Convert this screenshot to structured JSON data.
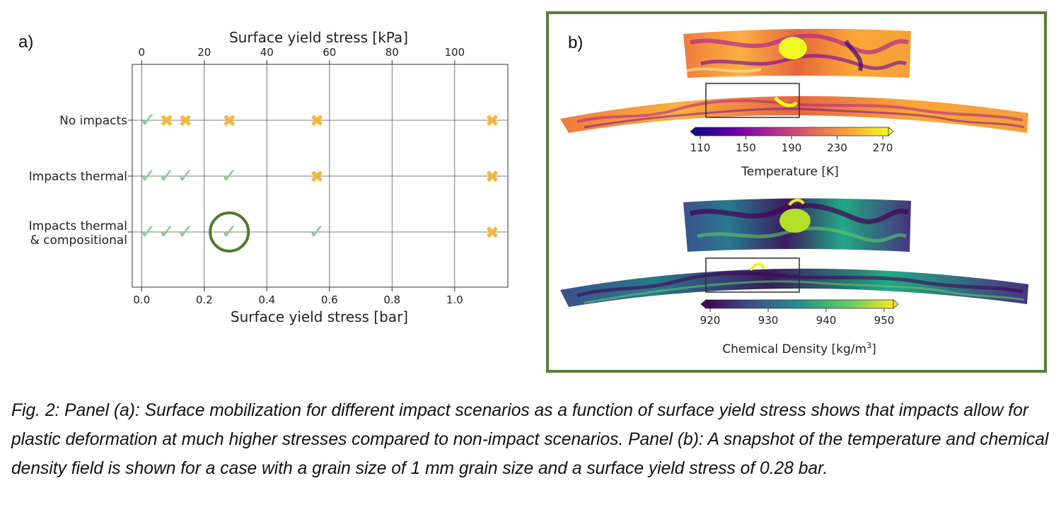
{
  "panel_a": {
    "label": "a)",
    "chart_data": {
      "type": "scatter",
      "xlabel": "Surface yield stress [bar]",
      "xlim": [
        -0.03,
        1.17
      ],
      "xticks": [
        "0.0",
        "0.2",
        "0.4",
        "0.6",
        "0.8",
        "1.0"
      ],
      "secondary_xlabel": "Surface yield stress [kPa]",
      "secondary_xticks": [
        "0",
        "20",
        "40",
        "60",
        "80",
        "100"
      ],
      "categories": [
        "No impacts",
        "Impacts thermal",
        "Impacts thermal\n& compositional"
      ],
      "category_labels": [
        [
          "No impacts"
        ],
        [
          "Impacts thermal"
        ],
        [
          "Impacts thermal",
          "& compositional"
        ]
      ],
      "grid": true,
      "markers": {
        "mobilized": {
          "glyph": "✓",
          "color": "#7ecb8f"
        },
        "not_mobilized": {
          "glyph": "✖",
          "color": "#f6b838"
        }
      },
      "points": [
        {
          "x": 0.02,
          "row": 0,
          "mobilized": true
        },
        {
          "x": 0.08,
          "row": 0,
          "mobilized": false
        },
        {
          "x": 0.14,
          "row": 0,
          "mobilized": false
        },
        {
          "x": 0.28,
          "row": 0,
          "mobilized": false
        },
        {
          "x": 0.56,
          "row": 0,
          "mobilized": false
        },
        {
          "x": 1.12,
          "row": 0,
          "mobilized": false
        },
        {
          "x": 0.02,
          "row": 1,
          "mobilized": true
        },
        {
          "x": 0.08,
          "row": 1,
          "mobilized": true
        },
        {
          "x": 0.14,
          "row": 1,
          "mobilized": true
        },
        {
          "x": 0.28,
          "row": 1,
          "mobilized": true
        },
        {
          "x": 0.56,
          "row": 1,
          "mobilized": false
        },
        {
          "x": 1.12,
          "row": 1,
          "mobilized": false
        },
        {
          "x": 0.02,
          "row": 2,
          "mobilized": true
        },
        {
          "x": 0.08,
          "row": 2,
          "mobilized": true
        },
        {
          "x": 0.14,
          "row": 2,
          "mobilized": true
        },
        {
          "x": 0.28,
          "row": 2,
          "mobilized": true,
          "highlighted": true
        },
        {
          "x": 0.56,
          "row": 2,
          "mobilized": true
        },
        {
          "x": 1.12,
          "row": 2,
          "mobilized": false
        }
      ],
      "highlight_color": "#4f7a2c"
    }
  },
  "panel_b": {
    "label": "b)",
    "frame_color": "#5a7f38",
    "temperature_colorbar": {
      "ticks": [
        "110",
        "150",
        "190",
        "230",
        "270"
      ],
      "title": "Temperature [K]",
      "colormap": [
        "#0d0887",
        "#6a00a8",
        "#b12a90",
        "#e16462",
        "#fca636",
        "#f0f921"
      ]
    },
    "density_colorbar": {
      "ticks": [
        "920",
        "930",
        "940",
        "950"
      ],
      "title_main": "Chemical Density [kg/m",
      "title_sup": "3",
      "title_end": "]",
      "colormap": [
        "#440154",
        "#3b528b",
        "#21918c",
        "#5ec962",
        "#fde725"
      ]
    }
  },
  "caption": "Fig. 2: Panel (a): Surface mobilization for different impact scenarios as a function of surface yield stress shows that impacts allow for plastic deformation at much higher stresses compared to non-impact scenarios. Panel (b): A snapshot of the temperature and chemical density field is shown for a case with a grain size of 1 mm grain size and a surface yield stress of 0.28 bar."
}
